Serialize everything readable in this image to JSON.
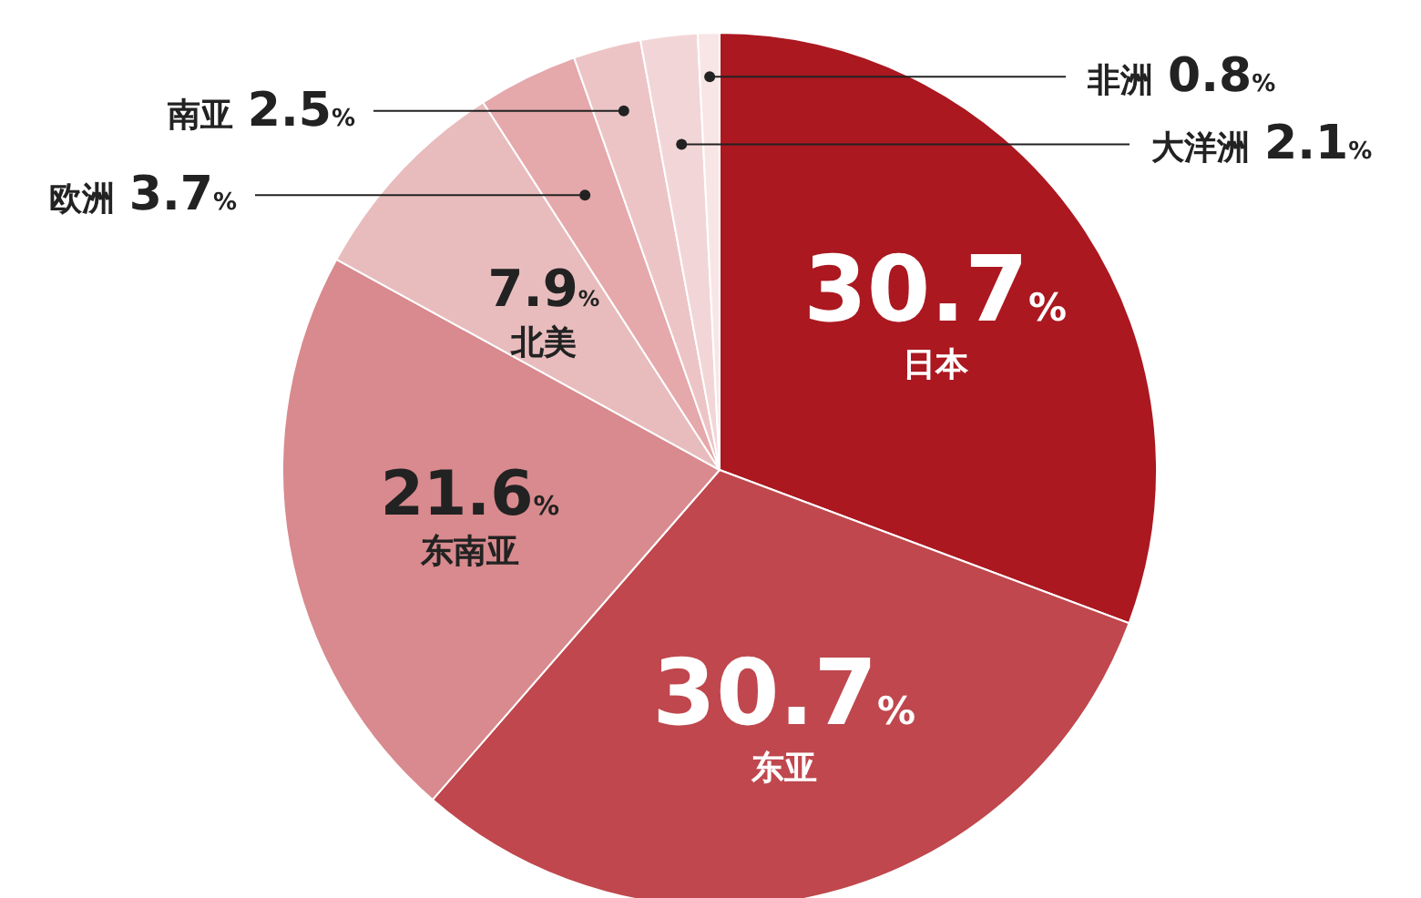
{
  "chart_data": {
    "type": "pie",
    "categories": [
      "日本",
      "东亚",
      "东南亚",
      "北美",
      "欧洲",
      "南亚",
      "大洋洲",
      "非洲"
    ],
    "values": [
      30.7,
      30.7,
      21.6,
      7.9,
      3.7,
      2.5,
      2.1,
      0.8
    ],
    "colors": [
      "#ab1820",
      "#bf474d",
      "#d88a8e",
      "#e8bcbd",
      "#e5a8ab",
      "#edc4c6",
      "#f2d6d7",
      "#f8e6e7"
    ],
    "value_labels": [
      "30.7%",
      "30.7%",
      "21.6%",
      "7.9%",
      "3.7%",
      "2.5%",
      "2.1%",
      "0.8%"
    ],
    "legend": false
  }
}
